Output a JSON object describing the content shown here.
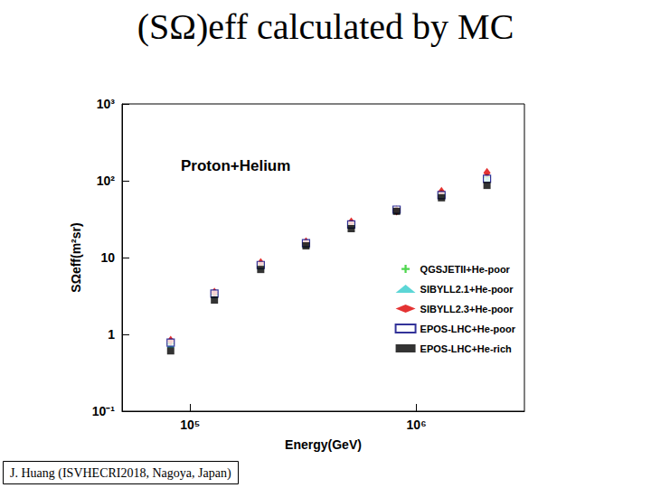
{
  "chart_data": {
    "type": "scatter",
    "title": "(SΩ)eff calculated by MC",
    "subtitle": "Proton+Helium",
    "annotations": [
      "J. Huang (ISVHECRI2018, Nagoya, Japan)"
    ],
    "x_label": "Energy(GeV)",
    "y_label": "SΩeff(m²sr)",
    "log": true,
    "grid": false,
    "legend": "right",
    "xlim": [
      50000,
      3000000
    ],
    "xticks": [
      {
        "value": 100000,
        "label": "10⁵"
      },
      {
        "value": 1000000,
        "label": "10⁶"
      }
    ],
    "ylim": [
      0.1,
      1000
    ],
    "yticks": [
      {
        "value": 0.1,
        "label": "10⁻¹"
      },
      1,
      10,
      {
        "value": 100,
        "label": "10²"
      },
      {
        "value": 1000,
        "label": "10³"
      }
    ],
    "x": [
      82000,
      128000,
      205000,
      325000,
      515000,
      817000,
      1290000,
      2050000
    ],
    "series": [
      {
        "name": "QGSJETII+He-poor",
        "color": "#22cc22",
        "marker": "cross",
        "values": [
          0.76,
          3.3,
          8.0,
          15.4,
          27,
          41,
          68,
          111
        ]
      },
      {
        "name": "SIBYLL2.1+He-poor",
        "color": "#33cccc",
        "marker": "triangle",
        "values": [
          0.74,
          3.3,
          7.8,
          15,
          26.5,
          41,
          66,
          108
        ]
      },
      {
        "name": "SIBYLL2.3+He-poor",
        "color": "#dd0000",
        "marker": "diamond",
        "values": [
          0.83,
          3.5,
          8.5,
          15.8,
          28.7,
          41,
          72,
          127
        ]
      },
      {
        "name": "EPOS-LHC+He-poor",
        "color": "#000080",
        "marker": "open_square",
        "values": [
          0.78,
          3.4,
          8.0,
          15.4,
          27,
          42,
          65,
          106
        ]
      },
      {
        "name": "EPOS-LHC+He-rich",
        "color": "#000000",
        "marker": "square",
        "values": [
          0.61,
          2.8,
          7.0,
          14.2,
          23.8,
          40,
          60,
          87
        ]
      }
    ]
  }
}
